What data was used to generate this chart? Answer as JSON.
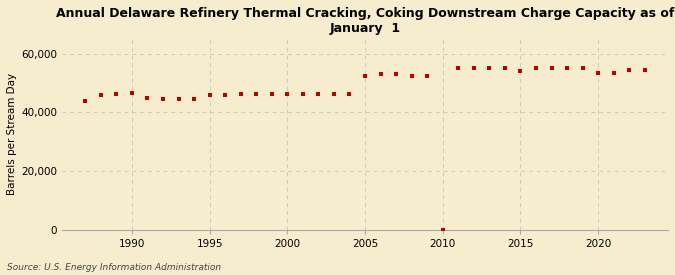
{
  "title": "Annual Delaware Refinery Thermal Cracking, Coking Downstream Charge Capacity as of\nJanuary  1",
  "ylabel": "Barrels per Stream Day",
  "source": "Source: U.S. Energy Information Administration",
  "background_color": "#f5edce",
  "plot_bg_color": "#f5edce",
  "marker_color": "#c00000",
  "grid_color": "#c8c8c8",
  "years": [
    1987,
    1988,
    1989,
    1990,
    1991,
    1992,
    1993,
    1994,
    1995,
    1996,
    1997,
    1998,
    1999,
    2000,
    2001,
    2002,
    2003,
    2004,
    2005,
    2006,
    2007,
    2008,
    2009,
    2010,
    2011,
    2012,
    2013,
    2014,
    2015,
    2016,
    2017,
    2018,
    2019,
    2020,
    2021,
    2022,
    2023
  ],
  "values": [
    44000,
    46000,
    46200,
    46500,
    45000,
    44500,
    44500,
    44500,
    46000,
    46000,
    46200,
    46200,
    46200,
    46200,
    46200,
    46200,
    46200,
    46200,
    52500,
    53000,
    53000,
    52500,
    52500,
    0,
    55000,
    55000,
    55000,
    55000,
    54000,
    55000,
    55000,
    55000,
    55000,
    53500,
    53500,
    54500,
    54500
  ],
  "ylim": [
    0,
    65000
  ],
  "yticks": [
    0,
    20000,
    40000,
    60000
  ],
  "ytick_labels": [
    "0",
    "20,000",
    "40,000",
    "60,000"
  ],
  "xlim": [
    1985.5,
    2024.5
  ],
  "xticks": [
    1990,
    1995,
    2000,
    2005,
    2010,
    2015,
    2020
  ],
  "title_fontsize": 9,
  "ylabel_fontsize": 7.5,
  "tick_fontsize": 7.5,
  "source_fontsize": 6.5
}
